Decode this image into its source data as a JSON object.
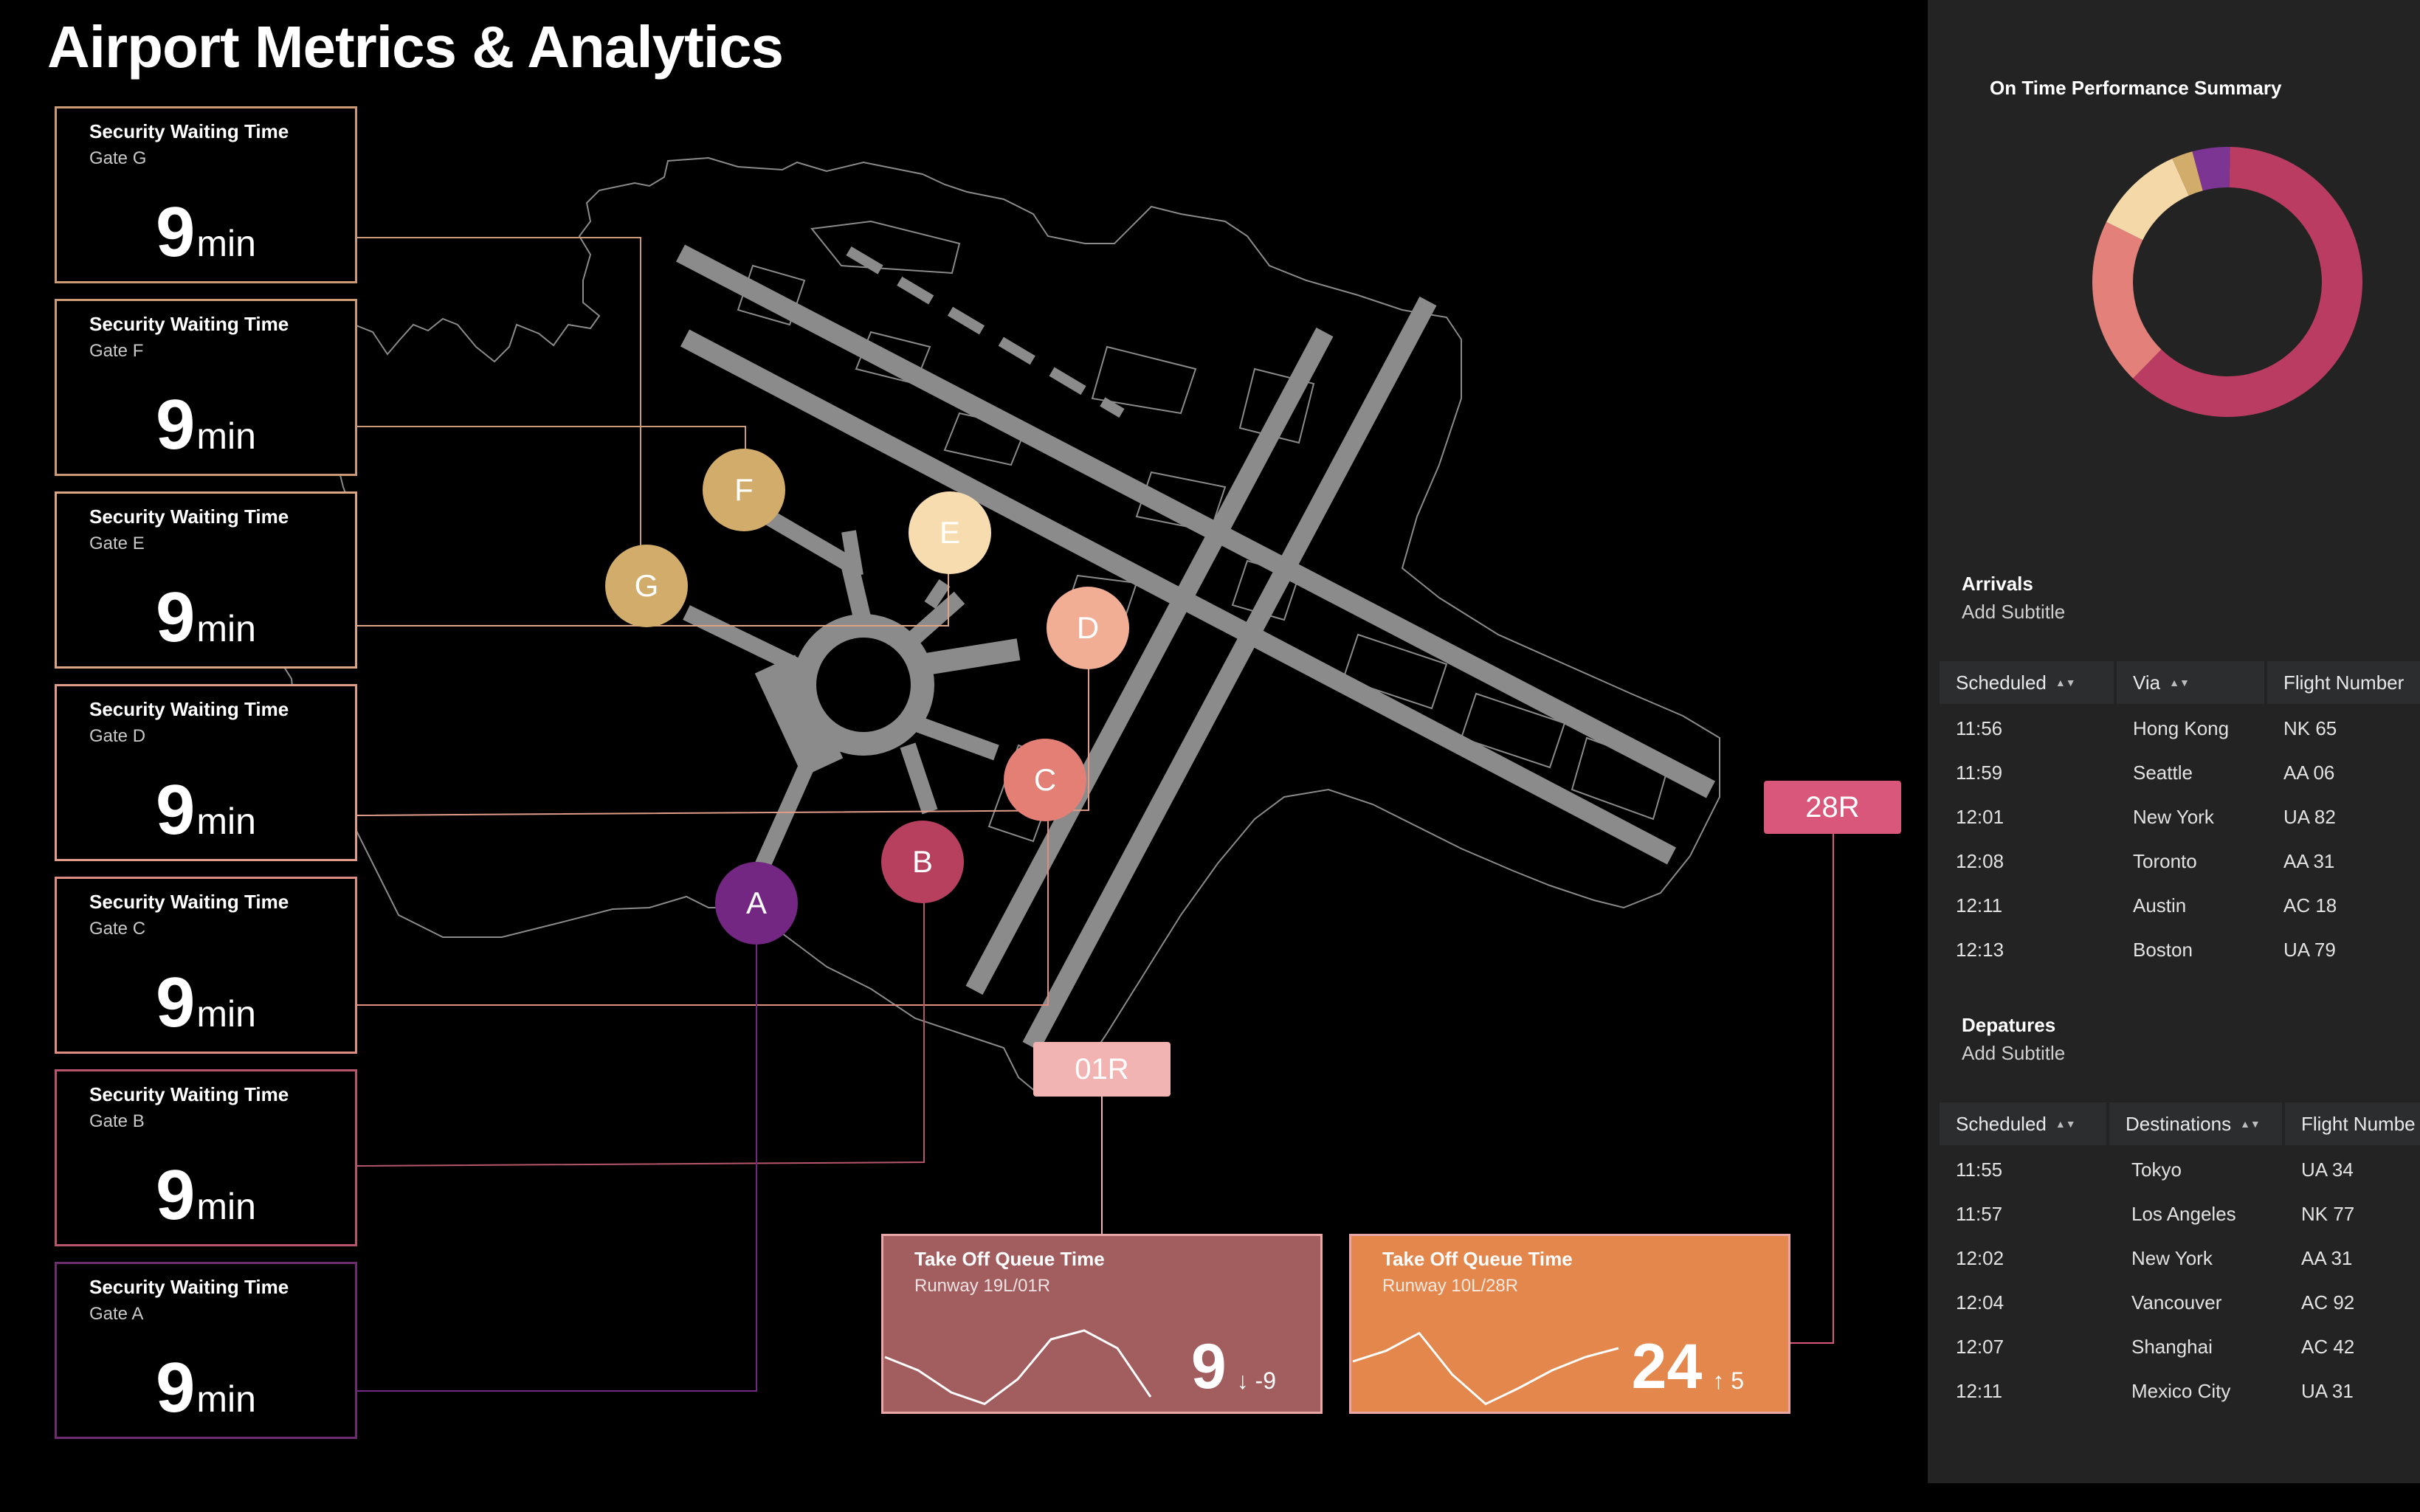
{
  "title": "Airport Metrics & Analytics",
  "wait_cards": [
    {
      "label": "Security Waiting Time",
      "gate": "Gate G",
      "value": "9",
      "unit": "min",
      "color": "#c99a75"
    },
    {
      "label": "Security Waiting Time",
      "gate": "Gate F",
      "value": "9",
      "unit": "min",
      "color": "#c99a75"
    },
    {
      "label": "Security Waiting Time",
      "gate": "Gate E",
      "value": "9",
      "unit": "min",
      "color": "#d9a582"
    },
    {
      "label": "Security Waiting Time",
      "gate": "Gate D",
      "value": "9",
      "unit": "min",
      "color": "#e09c88"
    },
    {
      "label": "Security Waiting Time",
      "gate": "Gate C",
      "value": "9",
      "unit": "min",
      "color": "#de8e80"
    },
    {
      "label": "Security Waiting Time",
      "gate": "Gate B",
      "value": "9",
      "unit": "min",
      "color": "#b7566a"
    },
    {
      "label": "Security Waiting Time",
      "gate": "Gate A",
      "value": "9",
      "unit": "min",
      "color": "#6b2d6e"
    }
  ],
  "gates": [
    {
      "label": "F",
      "color": "#d2ac6a"
    },
    {
      "label": "E",
      "color": "#f7dcb0"
    },
    {
      "label": "G",
      "color": "#d2ac6a"
    },
    {
      "label": "D",
      "color": "#f2ae95"
    },
    {
      "label": "C",
      "color": "#e37f75"
    },
    {
      "label": "B",
      "color": "#b7405f"
    },
    {
      "label": "A",
      "color": "#742683"
    }
  ],
  "runways": {
    "r28": {
      "label": "28R",
      "color": "#d8577a"
    },
    "r01": {
      "label": "01R",
      "color": "#f1b4b2"
    }
  },
  "queue_cards": [
    {
      "title": "Take Off Queue Time",
      "runway": "Runway 19L/01R",
      "value": "9",
      "delta": "↓ -9",
      "color": "#a25d5f",
      "trend": [
        0.55,
        0.4,
        0.15,
        0.02,
        0.3,
        0.75,
        0.85,
        0.65,
        0.1
      ]
    },
    {
      "title": "Take Off Queue Time",
      "runway": "Runway 10L/28R",
      "value": "24",
      "delta": "↑ 5",
      "color": "#e3874d",
      "trend": [
        0.5,
        0.62,
        0.82,
        0.35,
        0.02,
        0.2,
        0.4,
        0.55,
        0.65
      ]
    }
  ],
  "panel": {
    "summary_title": "On Time Performance Summary",
    "donut": [
      {
        "value": 62,
        "color": "#bb3c63"
      },
      {
        "value": 20,
        "color": "#e4807a"
      },
      {
        "value": 11,
        "color": "#f5d8a8"
      },
      {
        "value": 2.5,
        "color": "#d2ac6a"
      },
      {
        "value": 4.5,
        "color": "#7c3592"
      }
    ],
    "arrivals": {
      "title": "Arrivals",
      "subtitle": "Add Subtitle",
      "columns": [
        "Scheduled",
        "Via",
        "Flight Number"
      ],
      "rows": [
        [
          "11:56",
          "Hong Kong",
          "NK 65"
        ],
        [
          "11:59",
          "Seattle",
          "AA 06"
        ],
        [
          "12:01",
          "New York",
          "UA 82"
        ],
        [
          "12:08",
          "Toronto",
          "AA 31"
        ],
        [
          "12:11",
          "Austin",
          "AC 18"
        ],
        [
          "12:13",
          "Boston",
          "UA 79"
        ]
      ]
    },
    "departures": {
      "title": "Depatures",
      "subtitle": "Add Subtitle",
      "columns": [
        "Scheduled",
        "Destinations",
        "Flight Numbe"
      ],
      "rows": [
        [
          "11:55",
          "Tokyo",
          "UA 34"
        ],
        [
          "11:57",
          "Los Angeles",
          "NK 77"
        ],
        [
          "12:02",
          "New York",
          "AA 31"
        ],
        [
          "12:04",
          "Vancouver",
          "AC 92"
        ],
        [
          "12:07",
          "Shanghai",
          "AC 42"
        ],
        [
          "12:11",
          "Mexico City",
          "UA 31"
        ]
      ]
    }
  }
}
